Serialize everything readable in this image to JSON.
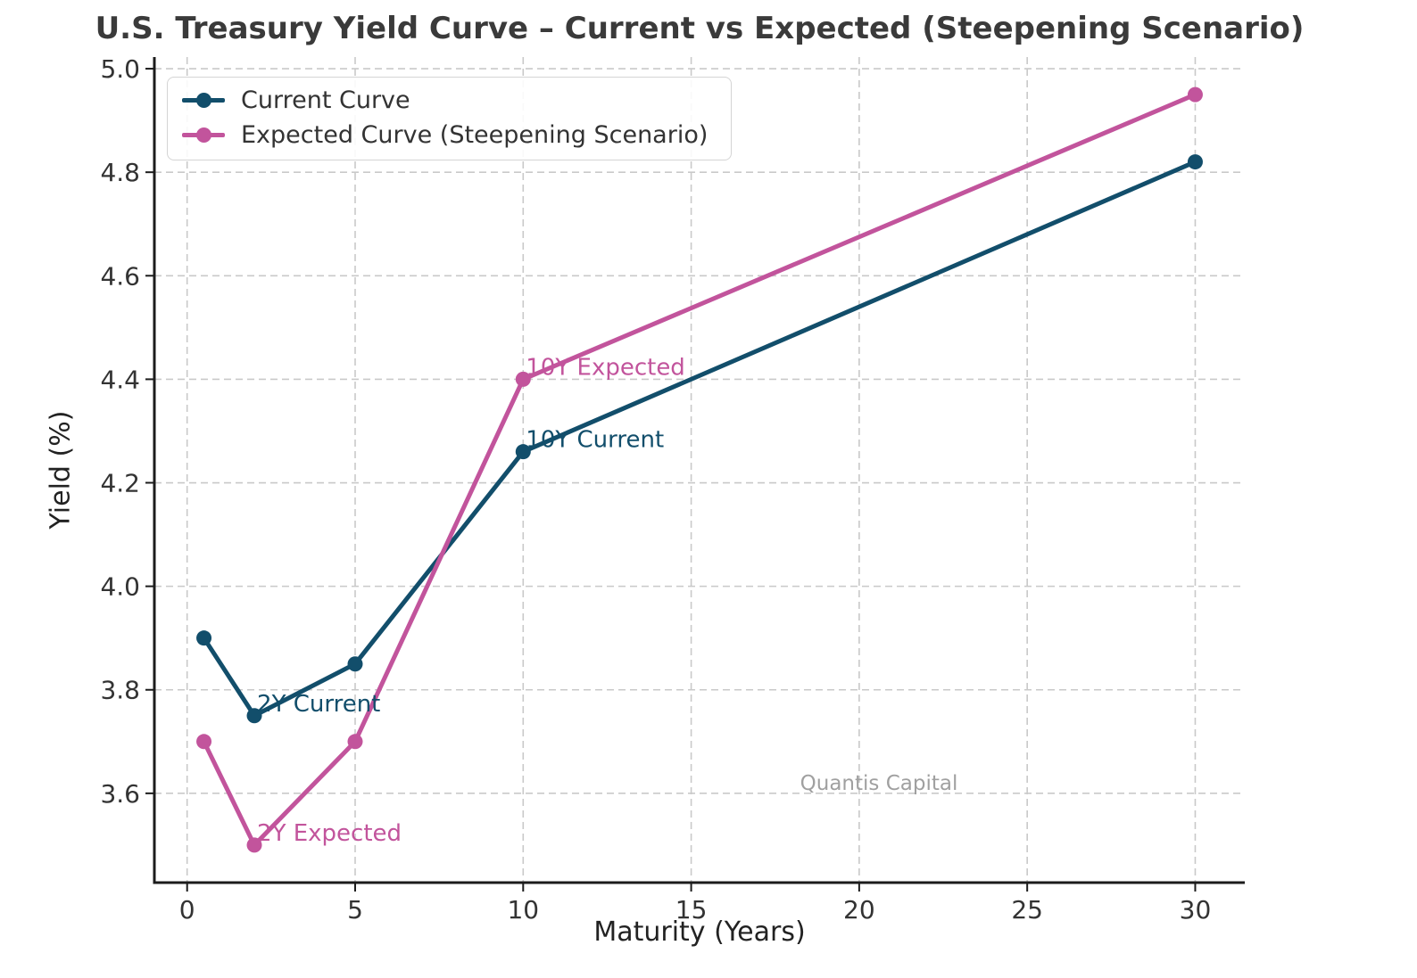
{
  "watermark": "Quantis Capital",
  "colors": {
    "current": "#124e6b",
    "expected": "#c2549c",
    "grid": "#c9c9c9",
    "spine": "#1c1c1c",
    "tick_text": "#333333",
    "title_text": "#3a3a3a",
    "watermark_text": "#a0a0a0",
    "background": "#ffffff"
  },
  "legend": {
    "items": [
      {
        "label": "Current Curve",
        "series": "current"
      },
      {
        "label": "Expected Curve (Steepening Scenario)",
        "series": "expected"
      }
    ]
  },
  "chart_data": {
    "type": "line",
    "title": "U.S. Treasury Yield Curve – Current vs Expected (Steepening Scenario)",
    "xlabel": "Maturity (Years)",
    "ylabel": "Yield (%)",
    "x": [
      0.5,
      2,
      5,
      10,
      30
    ],
    "series": [
      {
        "name": "Current Curve",
        "key": "current",
        "color": "#124e6b",
        "values": [
          3.9,
          3.75,
          3.85,
          4.26,
          4.82
        ]
      },
      {
        "name": "Expected Curve (Steepening Scenario)",
        "key": "expected",
        "color": "#c2549c",
        "values": [
          3.7,
          3.5,
          3.7,
          4.4,
          4.95
        ]
      }
    ],
    "xlim": [
      -0.975,
      31.475
    ],
    "ylim": [
      3.4275,
      5.0225
    ],
    "xticks": [
      0,
      5,
      10,
      15,
      20,
      25,
      30
    ],
    "xtick_labels": [
      "0",
      "5",
      "10",
      "15",
      "20",
      "25",
      "30"
    ],
    "yticks": [
      3.6,
      3.8,
      4.0,
      4.2,
      4.4,
      4.6,
      4.8,
      5.0
    ],
    "ytick_labels": [
      "3.6",
      "3.8",
      "4.0",
      "4.2",
      "4.4",
      "4.6",
      "4.8",
      "5.0"
    ],
    "grid": true,
    "grid_style": "dashed",
    "legend_position": "upper left",
    "annotations": [
      {
        "text": "2Y Current",
        "x": 2,
        "y": 3.75,
        "series": "current"
      },
      {
        "text": "2Y Expected",
        "x": 2,
        "y": 3.5,
        "series": "expected"
      },
      {
        "text": "10Y Current",
        "x": 10,
        "y": 4.26,
        "series": "current"
      },
      {
        "text": "10Y Expected",
        "x": 10,
        "y": 4.4,
        "series": "expected"
      }
    ]
  }
}
